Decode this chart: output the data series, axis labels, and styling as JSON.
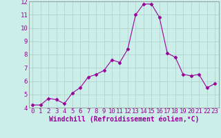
{
  "x": [
    0,
    1,
    2,
    3,
    4,
    5,
    6,
    7,
    8,
    9,
    10,
    11,
    12,
    13,
    14,
    15,
    16,
    17,
    18,
    19,
    20,
    21,
    22,
    23
  ],
  "y": [
    4.2,
    4.2,
    4.7,
    4.6,
    4.3,
    5.1,
    5.5,
    6.3,
    6.5,
    6.8,
    7.6,
    7.4,
    8.4,
    11.0,
    11.8,
    11.8,
    10.8,
    8.1,
    7.8,
    6.5,
    6.4,
    6.5,
    5.5,
    5.8
  ],
  "line_color": "#990099",
  "marker": "D",
  "marker_size": 2.5,
  "bg_color": "#cceee8",
  "grid_color": "#aacccc",
  "xlabel": "Windchill (Refroidissement éolien,°C)",
  "ylim": [
    4,
    12
  ],
  "xlim_min": -0.5,
  "xlim_max": 23.5,
  "yticks": [
    4,
    5,
    6,
    7,
    8,
    9,
    10,
    11,
    12
  ],
  "xtick_labels": [
    "0",
    "1",
    "2",
    "3",
    "4",
    "5",
    "6",
    "7",
    "8",
    "9",
    "10",
    "11",
    "12",
    "13",
    "14",
    "15",
    "16",
    "17",
    "18",
    "19",
    "20",
    "21",
    "22",
    "23"
  ],
  "tick_color": "#990099",
  "label_color": "#990099",
  "xlabel_fontsize": 7,
  "tick_fontsize": 6.5
}
